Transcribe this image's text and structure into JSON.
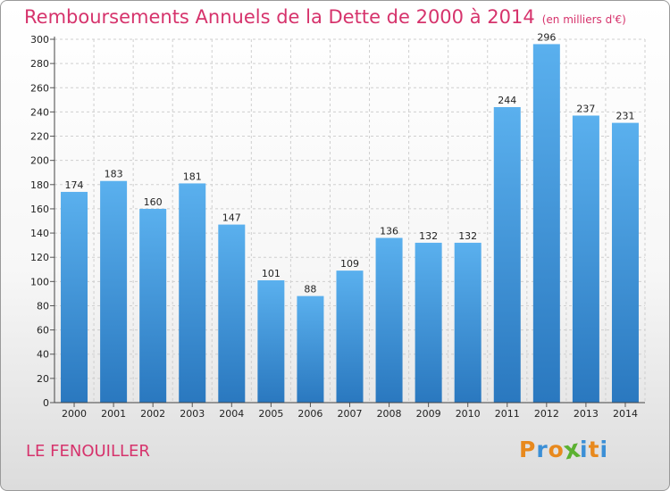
{
  "title": "Remboursements Annuels de la Dette de 2000 à 2014",
  "subtitle": "(en milliers d'€)",
  "place_name": "LE FENOUILLER",
  "logo": {
    "text": "Proxiti",
    "colors": [
      "#e8891d",
      "#3b8fd6",
      "#e8891d",
      "#5bb131",
      "#3b8fd6",
      "#e8891d",
      "#3b8fd6"
    ]
  },
  "colors": {
    "title": "#d6336c",
    "bar_top": "#5ab0ee",
    "bar_bottom": "#2a78bf"
  },
  "chart_data": {
    "type": "bar",
    "categories": [
      "2000",
      "2001",
      "2002",
      "2003",
      "2004",
      "2005",
      "2006",
      "2007",
      "2008",
      "2009",
      "2010",
      "2011",
      "2012",
      "2013",
      "2014"
    ],
    "values": [
      174,
      183,
      160,
      181,
      147,
      101,
      88,
      109,
      136,
      132,
      132,
      244,
      296,
      237,
      231
    ],
    "ylim": [
      0,
      300
    ],
    "yticks": [
      0,
      20,
      40,
      60,
      80,
      100,
      120,
      140,
      160,
      180,
      200,
      220,
      240,
      260,
      280,
      300
    ],
    "grid": true,
    "legend": "none"
  }
}
